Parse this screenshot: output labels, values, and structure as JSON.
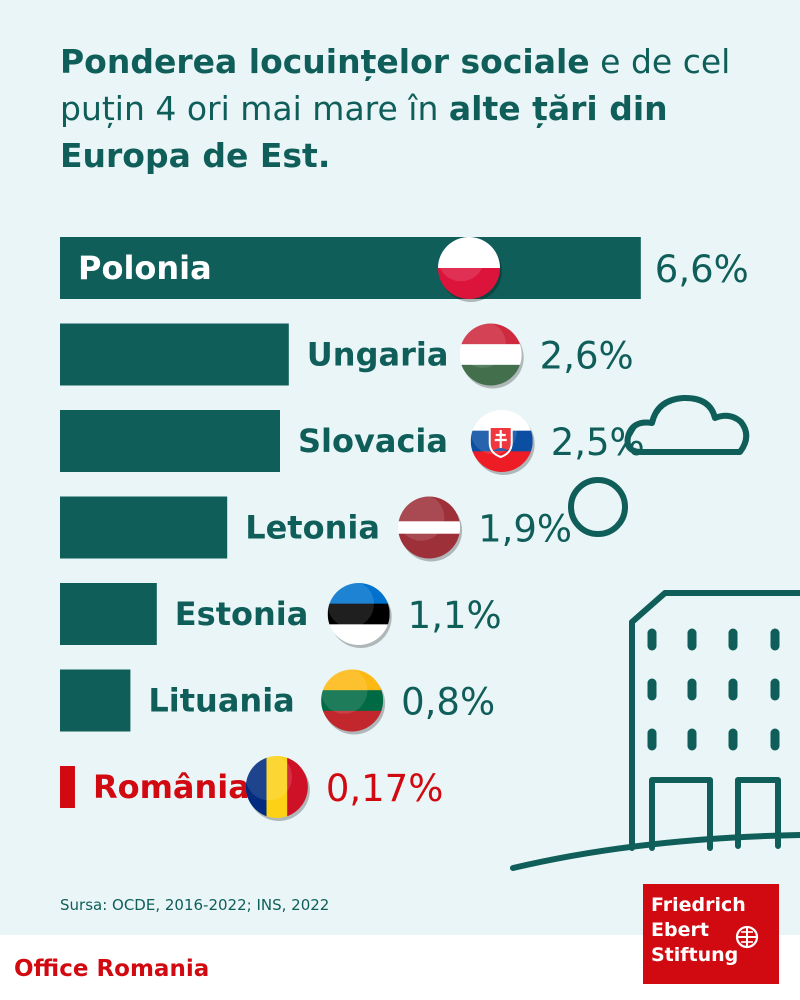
{
  "title": {
    "part1_bold": "Ponderea locuințelor sociale",
    "part2": " e de cel puțin 4 ori mai mare în ",
    "part3_bold": "alte țări din Europa de Est."
  },
  "colors": {
    "teal": "#0f5e5a",
    "red": "#d10a11",
    "background": "#eaf5f7"
  },
  "chart_data": {
    "type": "bar",
    "orientation": "horizontal",
    "unit": "%",
    "categories": [
      "Polonia",
      "Ungaria",
      "Slovacia",
      "Letonia",
      "Estonia",
      "Lituania",
      "România"
    ],
    "values": [
      6.6,
      2.6,
      2.5,
      1.9,
      1.1,
      0.8,
      0.17
    ],
    "value_labels": [
      "6,6%",
      "2,6%",
      "2,5%",
      "1,9%",
      "1,1%",
      "0,8%",
      "0,17%"
    ],
    "flags": [
      "poland-flag-icon",
      "hungary-flag-icon",
      "slovakia-flag-icon",
      "latvia-flag-icon",
      "estonia-flag-icon",
      "lithuania-flag-icon",
      "romania-flag-icon"
    ],
    "highlight": "România",
    "bar_colors": [
      "#0f5e5a",
      "#0f5e5a",
      "#0f5e5a",
      "#0f5e5a",
      "#0f5e5a",
      "#0f5e5a",
      "#d10a11"
    ]
  },
  "source": "Sursa: OCDE, 2016-2022; INS, 2022",
  "footer": {
    "office": "Office Romania",
    "logo_lines": [
      "Friedrich",
      "Ebert",
      "Stiftung"
    ]
  }
}
